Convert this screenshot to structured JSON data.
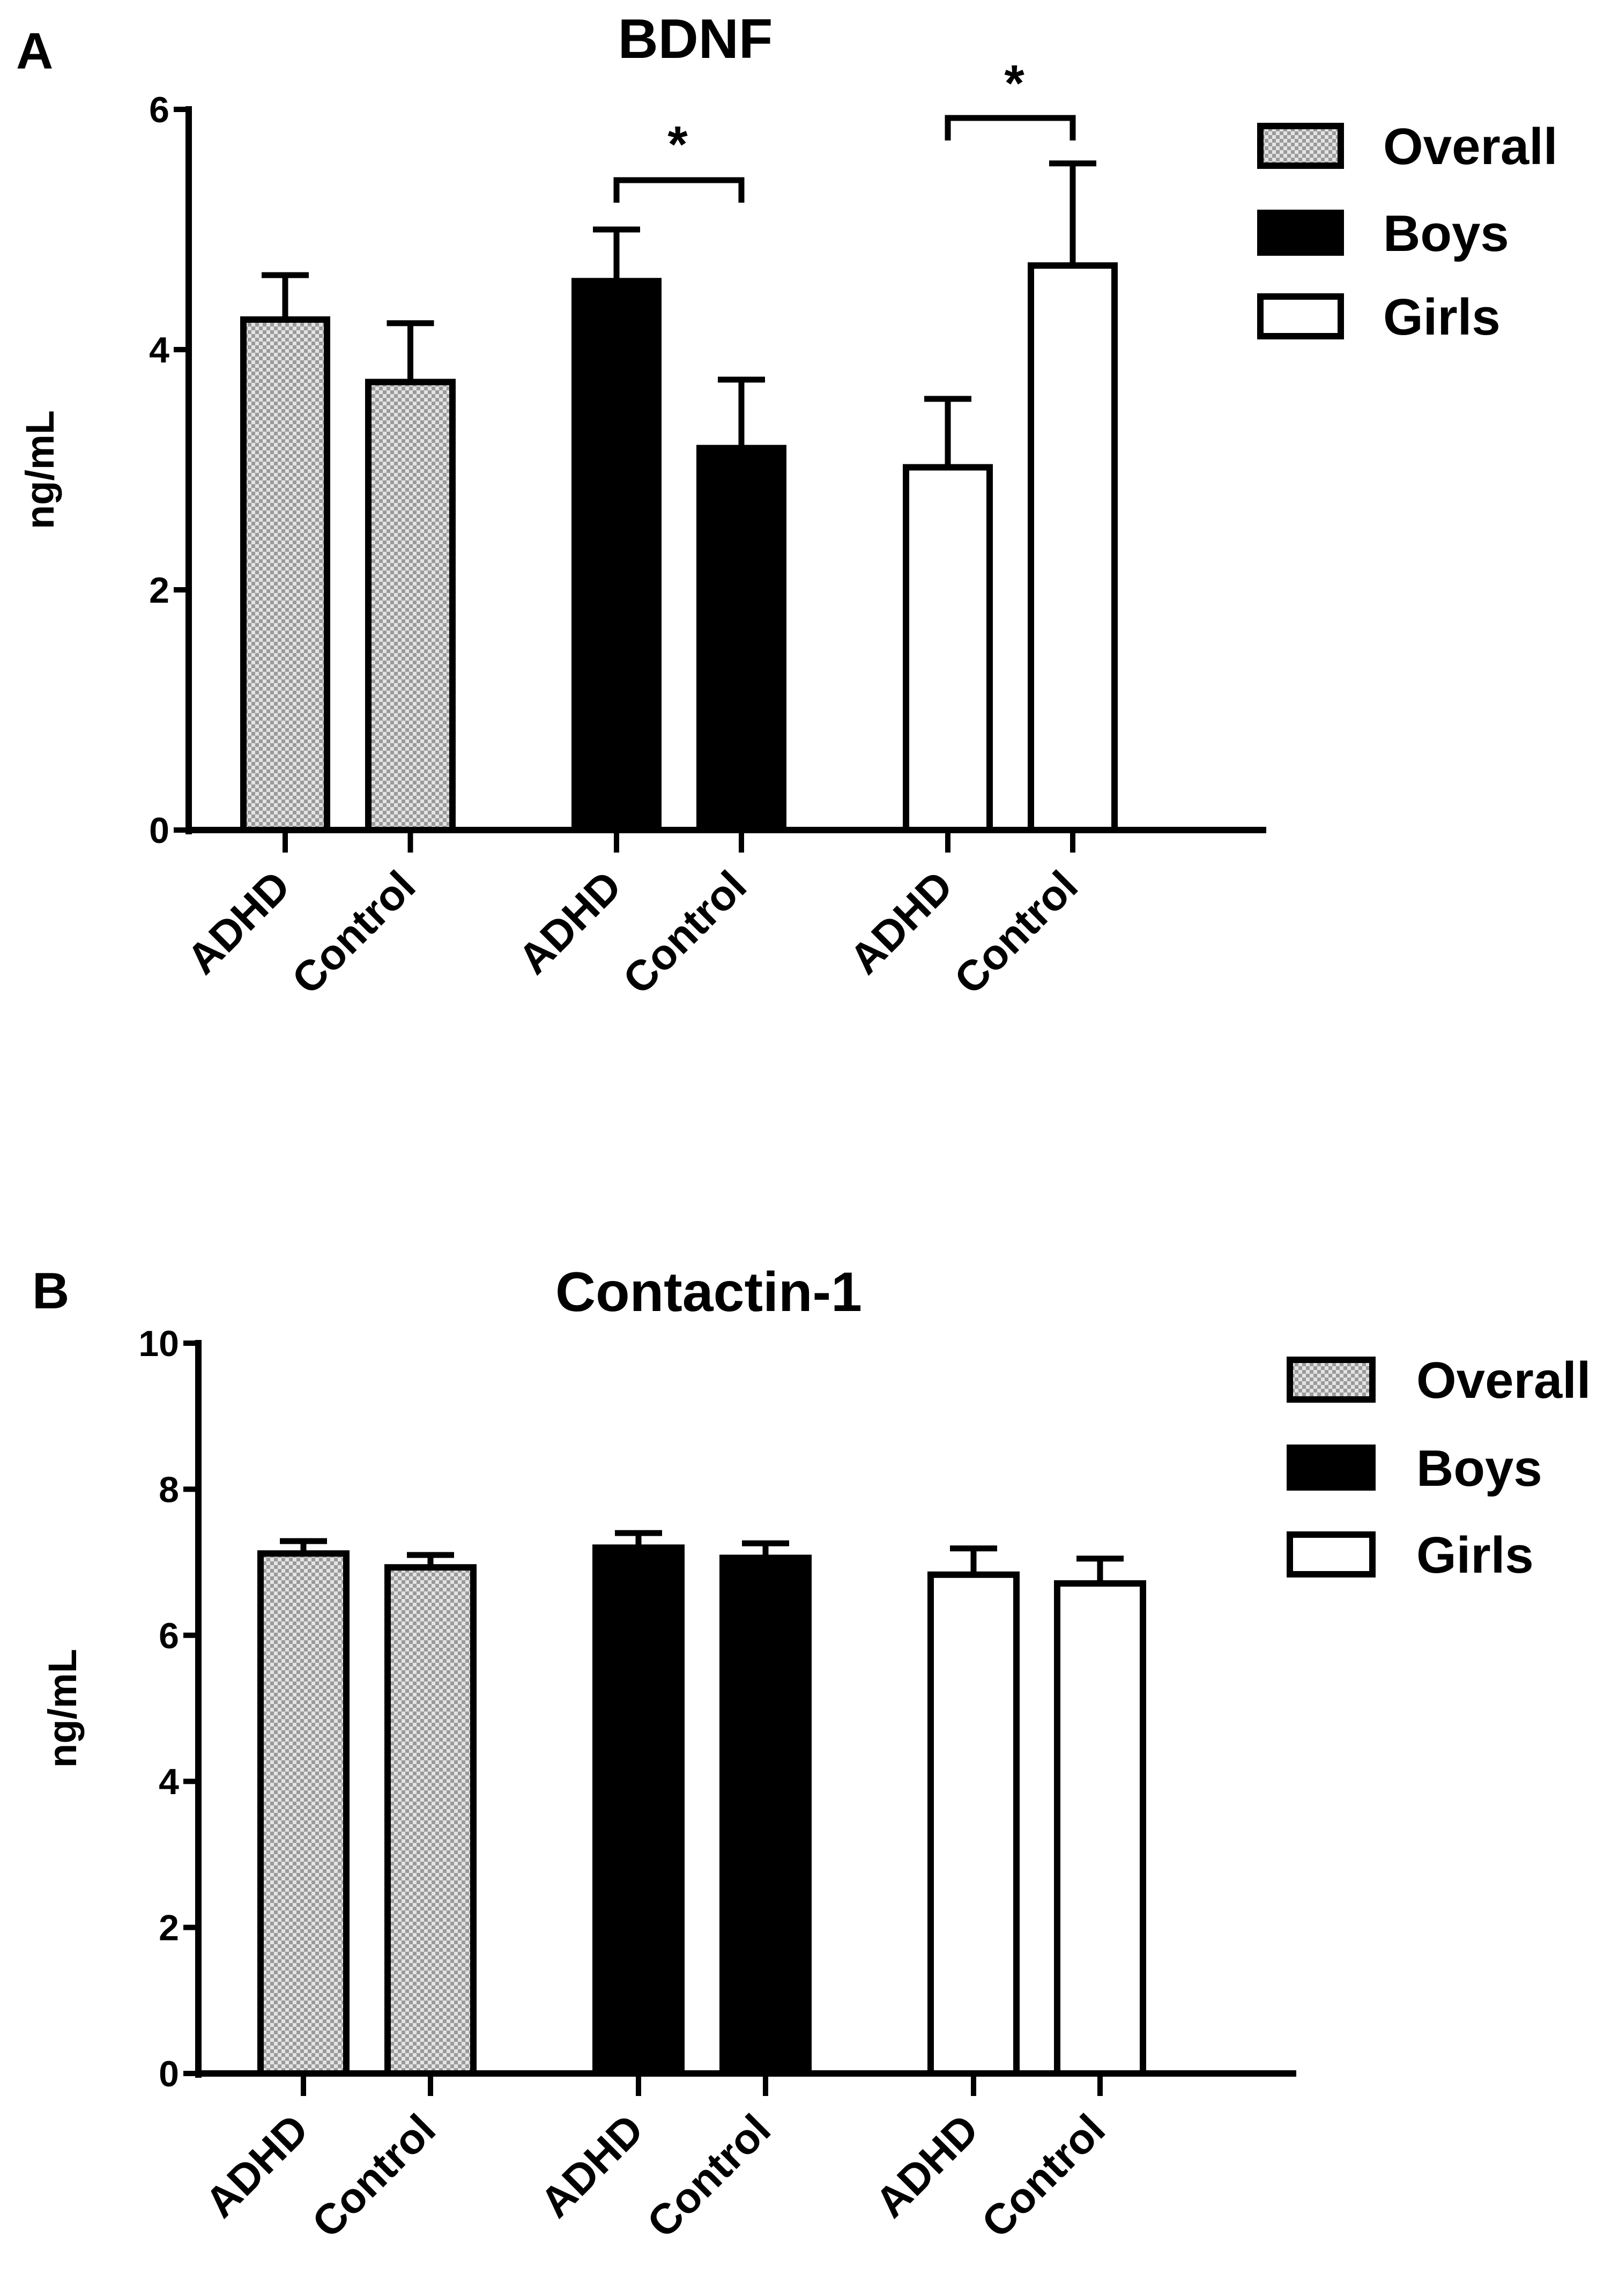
{
  "chart_data": [
    {
      "type": "bar",
      "panel": "A",
      "title": "BDNF",
      "xlabel": "",
      "ylabel": "ng/mL",
      "ylim": [
        0,
        6
      ],
      "yticks": [
        0,
        2,
        4,
        6
      ],
      "categories": [
        "ADHD",
        "Control"
      ],
      "groups": [
        {
          "name": "Overall",
          "fill": "checker",
          "values": [
            4.25,
            3.73
          ],
          "errors": [
            0.37,
            0.49
          ]
        },
        {
          "name": "Boys",
          "fill": "black",
          "values": [
            4.57,
            3.18
          ],
          "errors": [
            0.43,
            0.57
          ]
        },
        {
          "name": "Girls",
          "fill": "white",
          "values": [
            3.02,
            4.7
          ],
          "errors": [
            0.57,
            0.85
          ]
        }
      ],
      "significance": [
        {
          "group": "Boys",
          "label": "*"
        },
        {
          "group": "Girls",
          "label": "*"
        }
      ],
      "legend": [
        "Overall",
        "Boys",
        "Girls"
      ],
      "legend_position": "top-right"
    },
    {
      "type": "bar",
      "panel": "B",
      "title": "Contactin-1",
      "xlabel": "",
      "ylabel": "ng/mL",
      "ylim": [
        0,
        10
      ],
      "yticks": [
        0,
        2,
        4,
        6,
        8,
        10
      ],
      "categories": [
        "ADHD",
        "Control"
      ],
      "groups": [
        {
          "name": "Overall",
          "fill": "checker",
          "values": [
            7.12,
            6.93
          ],
          "errors": [
            0.17,
            0.17
          ]
        },
        {
          "name": "Boys",
          "fill": "black",
          "values": [
            7.2,
            7.06
          ],
          "errors": [
            0.2,
            0.2
          ]
        },
        {
          "name": "Girls",
          "fill": "white",
          "values": [
            6.83,
            6.71
          ],
          "errors": [
            0.36,
            0.34
          ]
        }
      ],
      "significance": [],
      "legend": [
        "Overall",
        "Boys",
        "Girls"
      ],
      "legend_position": "top-right"
    }
  ]
}
